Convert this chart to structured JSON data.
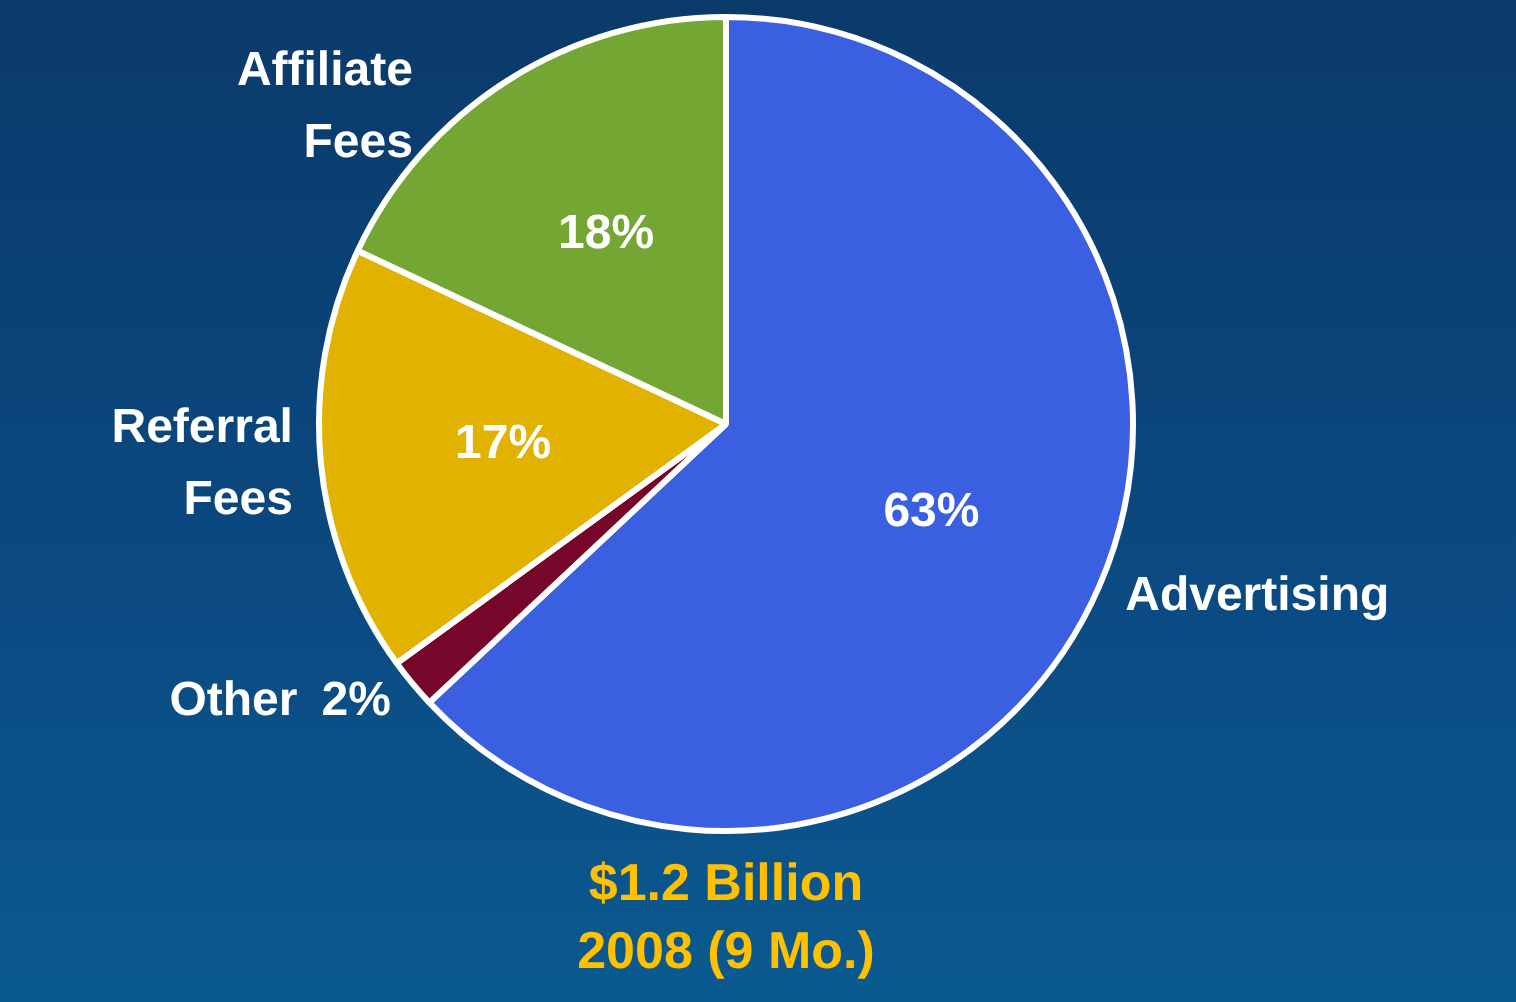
{
  "chart_data": {
    "type": "pie",
    "categories": [
      "Advertising",
      "Other",
      "Referral Fees",
      "Affiliate Fees"
    ],
    "values": [
      63,
      2,
      17,
      18
    ],
    "colors": [
      "#3a5fe0",
      "#76062a",
      "#e2b200",
      "#74a633"
    ],
    "value_labels": [
      "63%",
      "2%",
      "17%",
      "18%"
    ],
    "legend": false,
    "annotations": [
      "$1.2 Billion",
      "2008 (9 Mo.)"
    ]
  }
}
